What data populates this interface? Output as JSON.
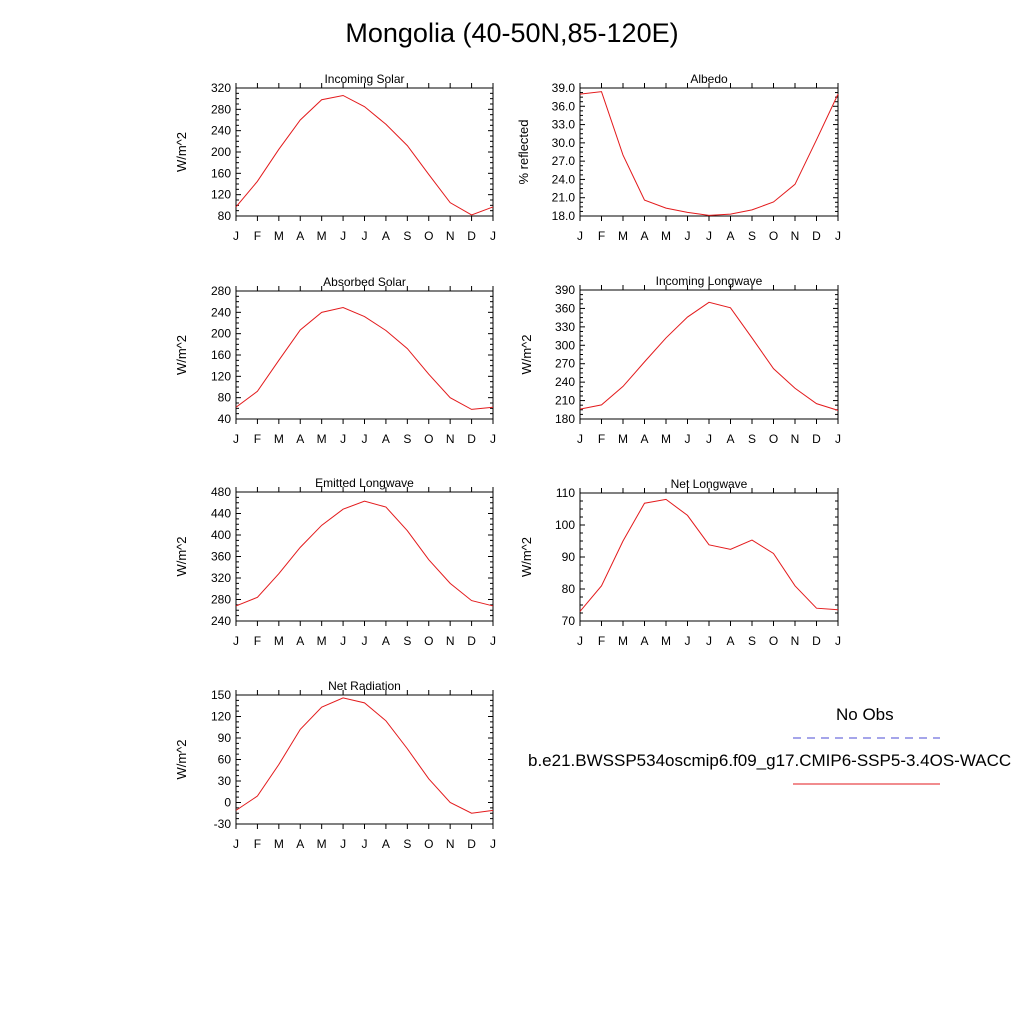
{
  "page": {
    "title": "Mongolia (40-50N,85-120E)"
  },
  "legend": {
    "obs_label": "No Obs",
    "obs_color": "#4b4bd6",
    "model_label": "b.e21.BWSSP534oscmip6.f09_g17.CMIP6-SSP5-3.4OS-WACC",
    "model_color": "#e31a1c"
  },
  "chart_data": [
    {
      "id": "incoming-solar",
      "type": "line",
      "title": "Incoming Solar",
      "ylabel": "W/m^2",
      "categories": [
        "J",
        "F",
        "M",
        "A",
        "M",
        "J",
        "J",
        "A",
        "S",
        "O",
        "N",
        "D",
        "J"
      ],
      "ylim": [
        80,
        320
      ],
      "yticks": [
        80,
        120,
        160,
        200,
        240,
        280,
        320
      ],
      "tick_decimals": 0,
      "series": [
        {
          "name": "model",
          "values": [
            97,
            145,
            205,
            260,
            298,
            306,
            285,
            252,
            212,
            158,
            105,
            82,
            97
          ]
        }
      ]
    },
    {
      "id": "albedo",
      "type": "line",
      "title": "Albedo",
      "ylabel": "% reflected",
      "categories": [
        "J",
        "F",
        "M",
        "A",
        "M",
        "J",
        "J",
        "A",
        "S",
        "O",
        "N",
        "D",
        "J"
      ],
      "ylim": [
        18.0,
        39.0
      ],
      "yticks": [
        18,
        21,
        24,
        27,
        30,
        33,
        36,
        39
      ],
      "tick_decimals": 1,
      "series": [
        {
          "name": "model",
          "values": [
            38.0,
            38.4,
            28.0,
            20.6,
            19.3,
            18.6,
            18.1,
            18.3,
            19.0,
            20.3,
            23.2,
            30.5,
            38.0
          ]
        }
      ]
    },
    {
      "id": "absorbed-solar",
      "type": "line",
      "title": "Absorbed Solar",
      "ylabel": "W/m^2",
      "categories": [
        "J",
        "F",
        "M",
        "A",
        "M",
        "J",
        "J",
        "A",
        "S",
        "O",
        "N",
        "D",
        "J"
      ],
      "ylim": [
        40,
        280
      ],
      "yticks": [
        40,
        80,
        120,
        160,
        200,
        240,
        280
      ],
      "tick_decimals": 0,
      "series": [
        {
          "name": "model",
          "values": [
            62,
            92,
            150,
            207,
            240,
            249,
            232,
            206,
            172,
            124,
            80,
            58,
            62
          ]
        }
      ]
    },
    {
      "id": "incoming-longwave",
      "type": "line",
      "title": "Incoming Longwave",
      "ylabel": "W/m^2",
      "categories": [
        "J",
        "F",
        "M",
        "A",
        "M",
        "J",
        "J",
        "A",
        "S",
        "O",
        "N",
        "D",
        "J"
      ],
      "ylim": [
        180,
        390
      ],
      "yticks": [
        180,
        210,
        240,
        270,
        300,
        330,
        360,
        390
      ],
      "tick_decimals": 0,
      "series": [
        {
          "name": "model",
          "values": [
            196,
            203,
            233,
            273,
            312,
            346,
            370,
            361,
            312,
            262,
            230,
            205,
            194
          ]
        }
      ]
    },
    {
      "id": "emitted-longwave",
      "type": "line",
      "title": "Emitted Longwave",
      "ylabel": "W/m^2",
      "categories": [
        "J",
        "F",
        "M",
        "A",
        "M",
        "J",
        "J",
        "A",
        "S",
        "O",
        "N",
        "D",
        "J"
      ],
      "ylim": [
        240,
        480
      ],
      "yticks": [
        240,
        280,
        320,
        360,
        400,
        440,
        480
      ],
      "tick_decimals": 0,
      "series": [
        {
          "name": "model",
          "values": [
            268,
            284,
            328,
            377,
            418,
            448,
            463,
            452,
            408,
            354,
            310,
            278,
            268
          ]
        }
      ]
    },
    {
      "id": "net-longwave",
      "type": "line",
      "title": "Net Longwave",
      "ylabel": "W/m^2",
      "categories": [
        "J",
        "F",
        "M",
        "A",
        "M",
        "J",
        "J",
        "A",
        "S",
        "O",
        "N",
        "D",
        "J"
      ],
      "ylim": [
        70,
        110
      ],
      "yticks": [
        70,
        80,
        90,
        100,
        110
      ],
      "tick_decimals": 0,
      "series": [
        {
          "name": "model",
          "values": [
            73,
            81,
            95,
            106.8,
            108,
            103,
            93.8,
            92.4,
            95.3,
            91.1,
            81,
            74,
            73.5
          ]
        }
      ]
    },
    {
      "id": "net-radiation",
      "type": "line",
      "title": "Net Radiation",
      "ylabel": "W/m^2",
      "categories": [
        "J",
        "F",
        "M",
        "A",
        "M",
        "J",
        "J",
        "A",
        "S",
        "O",
        "N",
        "D",
        "J"
      ],
      "ylim": [
        -30,
        150
      ],
      "yticks": [
        -30,
        0,
        30,
        60,
        90,
        120,
        150
      ],
      "tick_decimals": 0,
      "series": [
        {
          "name": "model",
          "values": [
            -11,
            9,
            53,
            102,
            133,
            146,
            139,
            114,
            75,
            33,
            0,
            -15,
            -11
          ]
        }
      ]
    }
  ]
}
